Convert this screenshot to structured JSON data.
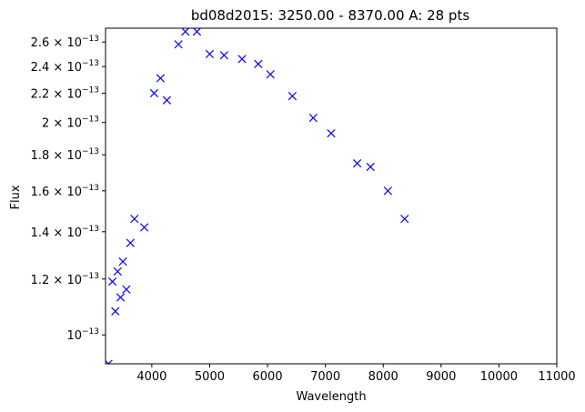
{
  "chart_data": {
    "type": "scatter",
    "title": "bd08d2015: 3250.00 - 8370.00 A: 28 pts",
    "xlabel": "Wavelength",
    "ylabel": "Flux",
    "xlim": [
      3200,
      11000
    ],
    "ylim": [
      9.1e-14,
      2.72e-13
    ],
    "y_scale": "log",
    "grid": false,
    "marker": "x",
    "marker_color": "#0000ff",
    "x_ticks": [
      4000,
      5000,
      6000,
      7000,
      8000,
      9000,
      10000,
      11000
    ],
    "x_tick_labels": [
      "4000",
      "5000",
      "6000",
      "7000",
      "8000",
      "9000",
      "10000",
      "11000"
    ],
    "y_ticks": [
      {
        "value": 1e-13,
        "mantissa": "",
        "exp": "−13"
      },
      {
        "value": 1.2e-13,
        "mantissa": "1.2",
        "exp": "−13"
      },
      {
        "value": 1.4e-13,
        "mantissa": "1.4",
        "exp": "−13"
      },
      {
        "value": 1.6e-13,
        "mantissa": "1.6",
        "exp": "−13"
      },
      {
        "value": 1.8e-13,
        "mantissa": "1.8",
        "exp": "−13"
      },
      {
        "value": 2e-13,
        "mantissa": "2",
        "exp": "−13"
      },
      {
        "value": 2.2e-13,
        "mantissa": "2.2",
        "exp": "−13"
      },
      {
        "value": 2.4e-13,
        "mantissa": "2.4",
        "exp": "−13"
      },
      {
        "value": 2.6e-13,
        "mantissa": "2.6",
        "exp": "−13"
      }
    ],
    "points": [
      {
        "x": 3250,
        "y": 9.1e-14
      },
      {
        "x": 3320,
        "y": 1.19e-13
      },
      {
        "x": 3370,
        "y": 1.08e-13
      },
      {
        "x": 3410,
        "y": 1.23e-13
      },
      {
        "x": 3460,
        "y": 1.13e-13
      },
      {
        "x": 3500,
        "y": 1.27e-13
      },
      {
        "x": 3560,
        "y": 1.16e-13
      },
      {
        "x": 3630,
        "y": 1.35e-13
      },
      {
        "x": 3700,
        "y": 1.46e-13
      },
      {
        "x": 3870,
        "y": 1.42e-13
      },
      {
        "x": 4040,
        "y": 2.2e-13
      },
      {
        "x": 4150,
        "y": 2.31e-13
      },
      {
        "x": 4260,
        "y": 2.15e-13
      },
      {
        "x": 4460,
        "y": 2.58e-13
      },
      {
        "x": 4580,
        "y": 2.69e-13
      },
      {
        "x": 4780,
        "y": 2.69e-13
      },
      {
        "x": 5000,
        "y": 2.5e-13
      },
      {
        "x": 5250,
        "y": 2.49e-13
      },
      {
        "x": 5560,
        "y": 2.46e-13
      },
      {
        "x": 5840,
        "y": 2.42e-13
      },
      {
        "x": 6050,
        "y": 2.34e-13
      },
      {
        "x": 6430,
        "y": 2.18e-13
      },
      {
        "x": 6790,
        "y": 2.03e-13
      },
      {
        "x": 7100,
        "y": 1.93e-13
      },
      {
        "x": 7550,
        "y": 1.75e-13
      },
      {
        "x": 7780,
        "y": 1.73e-13
      },
      {
        "x": 8080,
        "y": 1.6e-13
      },
      {
        "x": 8370,
        "y": 1.46e-13
      }
    ]
  }
}
